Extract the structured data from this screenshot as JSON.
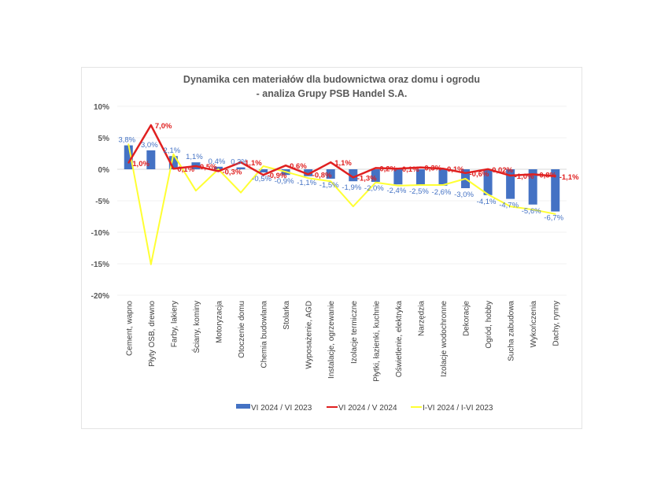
{
  "chart_data": {
    "type": "bar",
    "title": "Dynamika cen materiałów dla budownictwa oraz domu i ogrodu",
    "subtitle": "- analiza Grupy PSB Handel S.A.",
    "xlabel": "",
    "ylabel": "",
    "ylim": [
      -20,
      10
    ],
    "yticks": [
      10,
      5,
      0,
      -5,
      -10,
      -15,
      -20
    ],
    "ytick_labels": [
      "10%",
      "5%",
      "0%",
      "-5%",
      "-10%",
      "-15%",
      "-20%"
    ],
    "grid": true,
    "legend_position": "bottom",
    "categories": [
      "Cement, wapno",
      "Płyty OSB, drewno",
      "Farby, lakiery",
      "Ściany, kominy",
      "Motoryzacja",
      "Otoczenie domu",
      "Chemia budowlana",
      "Stolarka",
      "Wyposażenie, AGD",
      "Instalacje, ogrzewanie",
      "Izolacje termiczne",
      "Płytki, łazienki, kuchnie",
      "Oświetlenie, elektryka",
      "Narzędzia",
      "Izolacje wodochronne",
      "Dekoracje",
      "Ogród, hobby",
      "Sucha zabudowa",
      "Wykończenia",
      "Dachy, rynny"
    ],
    "series": [
      {
        "name": "VI 2024 / VI 2023",
        "kind": "bar",
        "color": "#4472c4",
        "values": [
          3.8,
          3.0,
          2.1,
          1.1,
          0.4,
          0.3,
          -0.5,
          -0.9,
          -1.1,
          -1.5,
          -1.9,
          -2.0,
          -2.4,
          -2.5,
          -2.6,
          -3.0,
          -4.1,
          -4.7,
          -5.6,
          -6.7
        ],
        "labels": [
          "3,8%",
          "3,0%",
          "2,1%",
          "1,1%",
          "0,4%",
          "0,3%",
          "-0,5%",
          "-0,9%",
          "-1,1%",
          "-1,5%",
          "-1,9%",
          "-2,0%",
          "-2,4%",
          "-2,5%",
          "-2,6%",
          "-3,0%",
          "-4,1%",
          "-4,7%",
          "-5,6%",
          "-6,7%"
        ]
      },
      {
        "name": "VI 2024 / V 2024",
        "kind": "line",
        "color": "#e02020",
        "values": [
          1.0,
          7.0,
          0.1,
          0.5,
          -0.3,
          1.1,
          -0.9,
          0.6,
          -0.8,
          1.1,
          -1.3,
          0.2,
          0.1,
          0.3,
          0.1,
          -0.6,
          0.02,
          -1.0,
          -0.8,
          -1.1
        ],
        "labels": [
          "1,0%",
          "7,0%",
          "0,1%",
          "0,5%",
          "-0,3%",
          "1,1%",
          "-0,9%",
          "0,6%",
          "-0,8%",
          "1,1%",
          "-1,3%",
          "0,2%",
          "0,1%",
          "0,3%",
          "0,1%",
          "-0,6%",
          "0,02%",
          "-1,0%",
          "-0,8%",
          "-1,1%"
        ]
      },
      {
        "name": "I-VI 2024 / I-VI 2023",
        "kind": "line",
        "color": "#ffff33",
        "values": [
          4.0,
          -15.1,
          2.4,
          -3.4,
          0.0,
          -3.7,
          0.5,
          -0.4,
          -1.4,
          -1.9,
          -5.9,
          -2.1,
          -2.6,
          -2.5,
          -2.5,
          -1.5,
          -4.0,
          -5.9,
          -6.4,
          -7.1
        ]
      }
    ]
  }
}
